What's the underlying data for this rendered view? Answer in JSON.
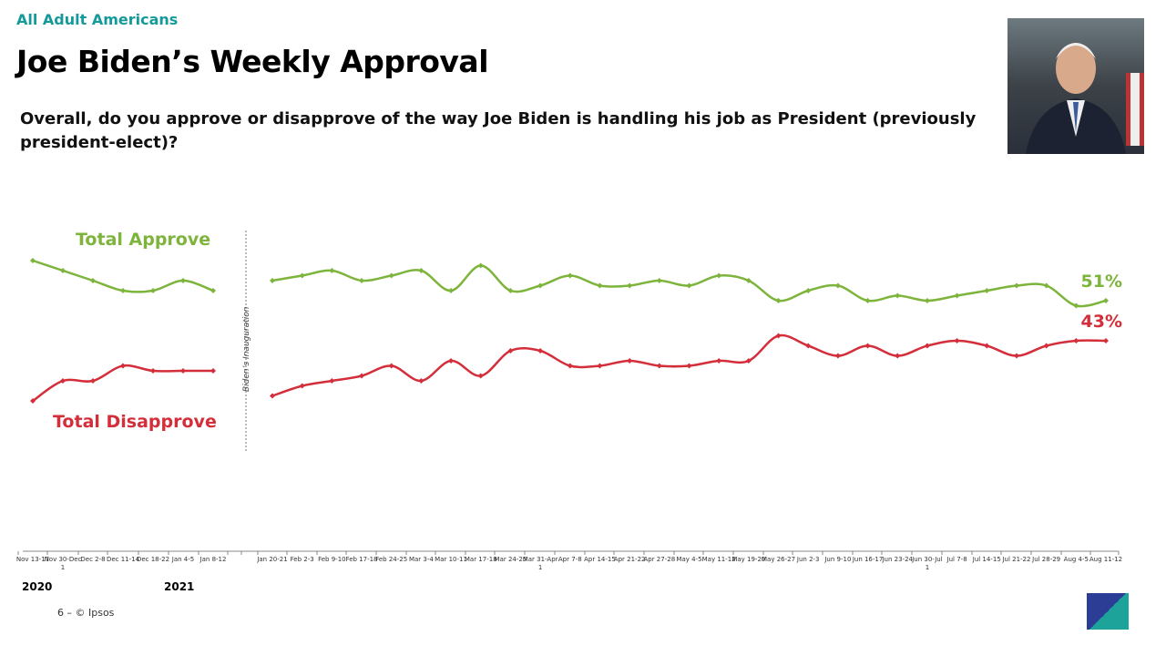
{
  "header": {
    "subtitle": "All Adult Americans",
    "title": "Joe Biden’s Weekly Approval",
    "question": "Overall, do you approve or disapprove of the way Joe Biden is handling his job as President (previously president-elect)?"
  },
  "footer": {
    "page": "6 –  © Ipsos",
    "logo": "Ipsos"
  },
  "chart_data": {
    "type": "line",
    "categories_pre": [
      "Nov 13-17",
      "Nov 30-Dec 1",
      "Dec 2-8",
      "Dec 11-14",
      "Dec 18-22",
      "Jan 4-5",
      "Jan 8-12"
    ],
    "categories_post": [
      "Jan 20-21",
      "Feb 2-3",
      "Feb 9-10",
      "Feb 17-18",
      "Feb 24-25",
      "Mar 3-4",
      "Mar 10-11",
      "Mar 17-18",
      "Mar 24-25",
      "Mar 31-Apr 1",
      "Apr 7-8",
      "Apr 14-15",
      "Apr 21-22",
      "Apr 27-28",
      "May 4-5",
      "May 11-12",
      "May 19-20",
      "May 26-27",
      "Jun 2-3",
      "Jun 9-10",
      "Jun 16-17",
      "Jun 23-24",
      "Jun 30-Jul 1",
      "Jul 7-8",
      "Jul 14-15",
      "Jul 21-22",
      "Jul 28-29",
      "Aug 4-5",
      "Aug 11-12"
    ],
    "years": [
      "2020",
      "2021"
    ],
    "annotation": "Biden’s Inauguration",
    "series": [
      {
        "name": "Total Approve",
        "color": "#7db43b",
        "end_label": "51%",
        "pre": [
          59,
          57,
          55,
          53,
          53,
          55,
          53
        ],
        "post": [
          55,
          56,
          57,
          55,
          56,
          57,
          53,
          58,
          53,
          54,
          56,
          54,
          54,
          55,
          54,
          56,
          55,
          51,
          53,
          54,
          51,
          52,
          51,
          52,
          53,
          54,
          54,
          50,
          51
        ]
      },
      {
        "name": "Total Disapprove",
        "color": "#d42e3a",
        "end_label": "43%",
        "pre": [
          31,
          35,
          35,
          38,
          37,
          37,
          37
        ],
        "post": [
          32,
          34,
          35,
          36,
          38,
          35,
          39,
          36,
          41,
          41,
          38,
          38,
          39,
          38,
          38,
          39,
          39,
          44,
          42,
          40,
          42,
          40,
          42,
          43,
          42,
          40,
          42,
          43,
          43
        ]
      }
    ],
    "unit": "%",
    "grid": false
  }
}
